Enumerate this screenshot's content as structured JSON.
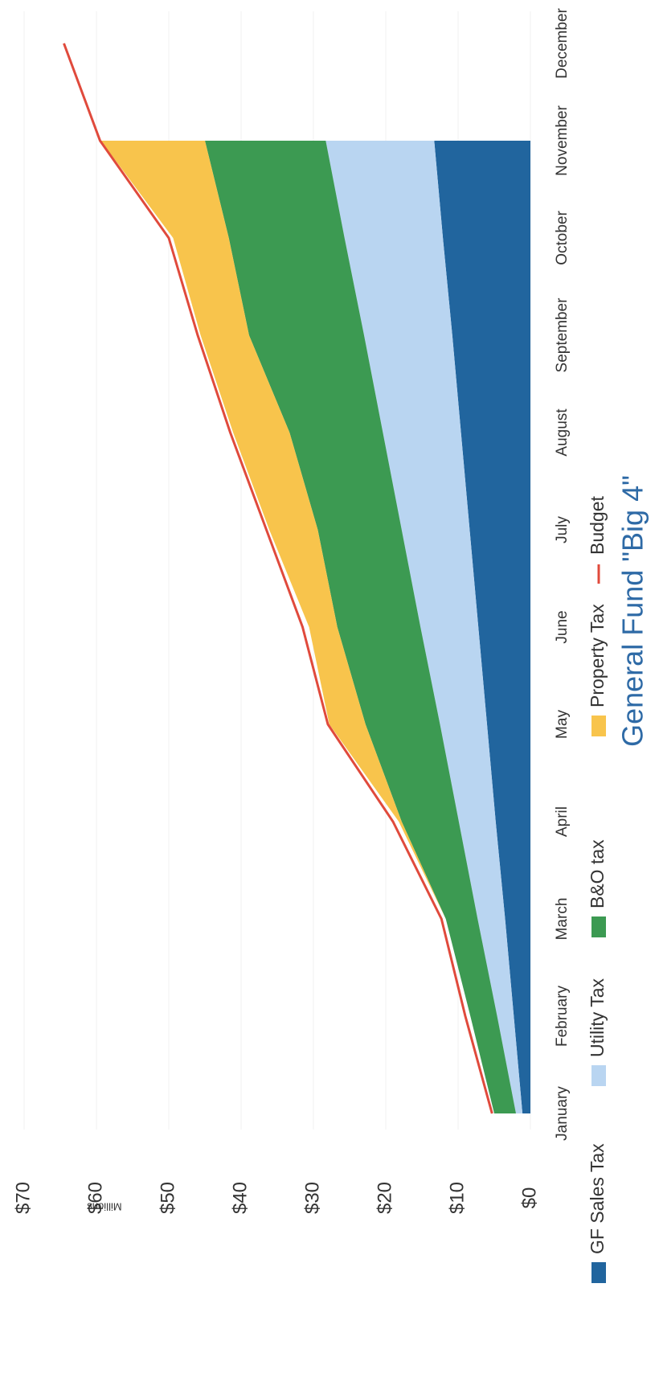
{
  "chart_data": {
    "type": "stacked-area",
    "title": "General Fund \"Big 4\"",
    "y_label": "Millions",
    "categories": [
      "January",
      "February",
      "March",
      "April",
      "May",
      "June",
      "July",
      "August",
      "September",
      "October",
      "November",
      "December"
    ],
    "ylim": [
      0,
      70
    ],
    "yticks": [
      {
        "value": 0,
        "label": "$0"
      },
      {
        "value": 10,
        "label": "$10"
      },
      {
        "value": 20,
        "label": "$20"
      },
      {
        "value": 30,
        "label": "$30"
      },
      {
        "value": 40,
        "label": "$40"
      },
      {
        "value": 50,
        "label": "$50"
      },
      {
        "value": 60,
        "label": "$60"
      },
      {
        "value": 70,
        "label": "$70"
      }
    ],
    "grid": true,
    "legend": "bottom",
    "series": [
      {
        "name": "GF Sales Tax",
        "color": "#21659e",
        "values": [
          1.1,
          2.3,
          3.5,
          4.8,
          6.0,
          7.2,
          8.4,
          9.6,
          10.8,
          12.1,
          13.3,
          null
        ]
      },
      {
        "name": "Utility Tax",
        "color": "#b9d5f1",
        "values": [
          0.9,
          2.3,
          3.8,
          5.1,
          6.5,
          8.0,
          9.4,
          10.8,
          12.2,
          13.6,
          15.0,
          null
        ]
      },
      {
        "name": "B&O tax",
        "color": "#3c9a52",
        "values": [
          3.0,
          3.7,
          4.4,
          7.9,
          10.3,
          11.5,
          11.6,
          12.9,
          15.9,
          16.0,
          16.7,
          null
        ]
      },
      {
        "name": "Property Tax",
        "color": "#f8c44c",
        "values": [
          0,
          0,
          0,
          0.4,
          5.0,
          3.9,
          6.7,
          7.8,
          6.7,
          7.7,
          14.4,
          null
        ]
      },
      {
        "name": "Budget",
        "color": "#e04a3c",
        "type": "line",
        "values": [
          5.3,
          9.0,
          12.3,
          19.0,
          28.0,
          31.5,
          36.5,
          41.5,
          46.0,
          50.0,
          59.5,
          64.5
        ]
      }
    ]
  }
}
